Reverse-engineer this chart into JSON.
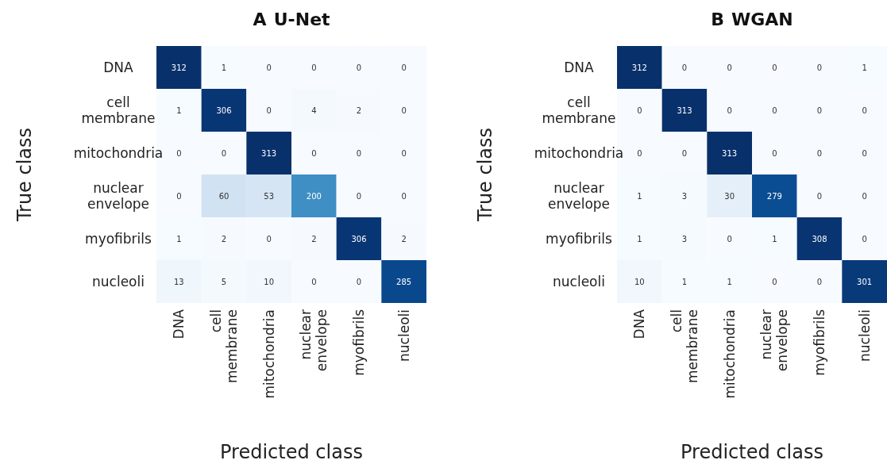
{
  "chart_data": [
    {
      "type": "heatmap",
      "title": "A U-Net",
      "xlabel": "Predicted class",
      "ylabel": "True class",
      "categories": [
        "DNA",
        "cell membrane",
        "mitochondria",
        "nuclear envelope",
        "myofibrils",
        "nucleoli"
      ],
      "y_categories": [
        "DNA",
        "cell membrane",
        "mitochondria",
        "nuclear envelope",
        "myofibrils",
        "nucleoli"
      ],
      "cells": [
        [
          312,
          1,
          0,
          0,
          0,
          0
        ],
        [
          1,
          306,
          0,
          4,
          2,
          0
        ],
        [
          0,
          0,
          313,
          0,
          0,
          0
        ],
        [
          0,
          60,
          53,
          200,
          0,
          0
        ],
        [
          1,
          2,
          0,
          2,
          306,
          2
        ],
        [
          13,
          5,
          10,
          0,
          0,
          285
        ]
      ],
      "data_labels": true
    },
    {
      "type": "heatmap",
      "title": "B WGAN",
      "xlabel": "Predicted class",
      "ylabel": "True class",
      "categories": [
        "DNA",
        "cell membrane",
        "mitochondria",
        "nuclear envelope",
        "myofibrils",
        "nucleoli"
      ],
      "y_categories": [
        "DNA",
        "cell membrane",
        "mitochondria",
        "nuclear envelope",
        "myofibrils",
        "nucleoli"
      ],
      "cells": [
        [
          312,
          0,
          0,
          0,
          0,
          1
        ],
        [
          0,
          313,
          0,
          0,
          0,
          0
        ],
        [
          0,
          0,
          313,
          0,
          0,
          0
        ],
        [
          1,
          3,
          30,
          279,
          0,
          0
        ],
        [
          1,
          3,
          0,
          1,
          308,
          0
        ],
        [
          10,
          1,
          1,
          0,
          0,
          301
        ]
      ],
      "data_labels": true
    }
  ]
}
